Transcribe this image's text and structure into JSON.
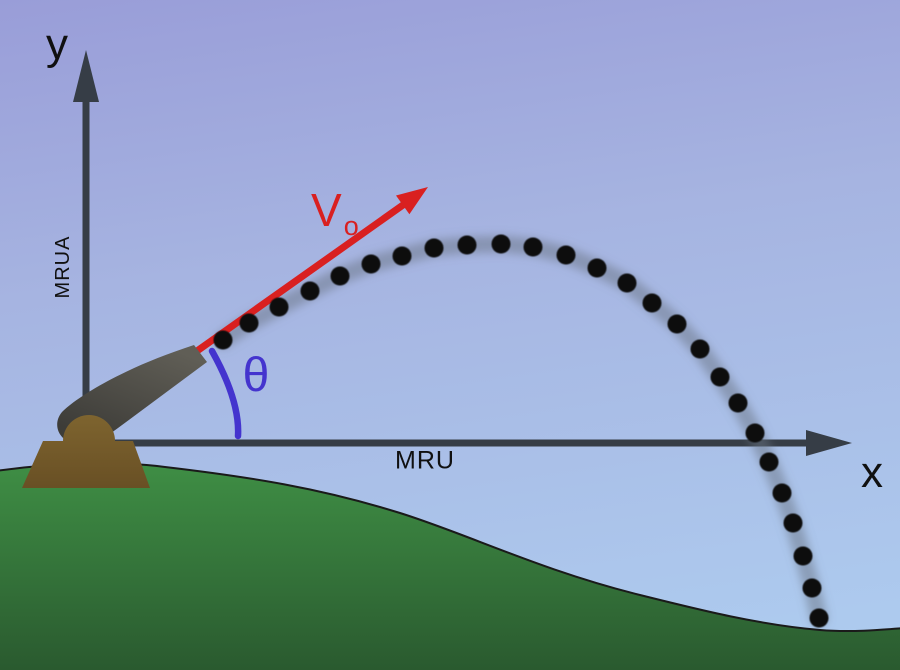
{
  "diagram": {
    "title": "Projectile motion (parabolic trajectory) launched by a cannon",
    "labels": {
      "y_axis": "y",
      "x_axis": "x",
      "y_axis_motion": "MRUA",
      "x_axis_motion": "MRU",
      "velocity_main": "V",
      "velocity_sub": "o",
      "angle": "θ"
    }
  },
  "colors": {
    "sky_top": "#999dd8",
    "sky_mid": "#a6b4e1",
    "sky_bottom": "#aecdf0",
    "ground_top": "#3f8f45",
    "ground_bottom": "#2a5a2f",
    "ground_outline": "#1a1a1a",
    "axis": "#363d46",
    "label": "#101010",
    "velocity_arrow": "#d92020",
    "angle_arc": "#4434ce",
    "trajectory_dot": "#0c0c0c",
    "trail": "rgba(106,116,132,0.5)",
    "cannon_barrel_light": "#605e56",
    "cannon_barrel_dark": "#3d3c38",
    "cannon_base_light": "#7e642f",
    "cannon_base_dark": "#684f24"
  },
  "trajectory": {
    "dot_radius": 9.5,
    "points": [
      [
        223,
        340
      ],
      [
        249,
        323
      ],
      [
        279,
        307
      ],
      [
        310,
        291
      ],
      [
        340,
        276
      ],
      [
        371,
        264
      ],
      [
        402,
        256
      ],
      [
        434,
        248
      ],
      [
        467,
        245
      ],
      [
        501,
        244
      ],
      [
        533,
        247
      ],
      [
        566,
        255
      ],
      [
        597,
        268
      ],
      [
        627,
        283
      ],
      [
        652,
        303
      ],
      [
        677,
        324
      ],
      [
        700,
        349
      ],
      [
        720,
        377
      ],
      [
        738,
        403
      ],
      [
        755,
        433
      ],
      [
        769,
        462
      ],
      [
        782,
        493
      ],
      [
        793,
        523
      ],
      [
        803,
        556
      ],
      [
        812,
        588
      ],
      [
        819,
        618
      ]
    ]
  }
}
